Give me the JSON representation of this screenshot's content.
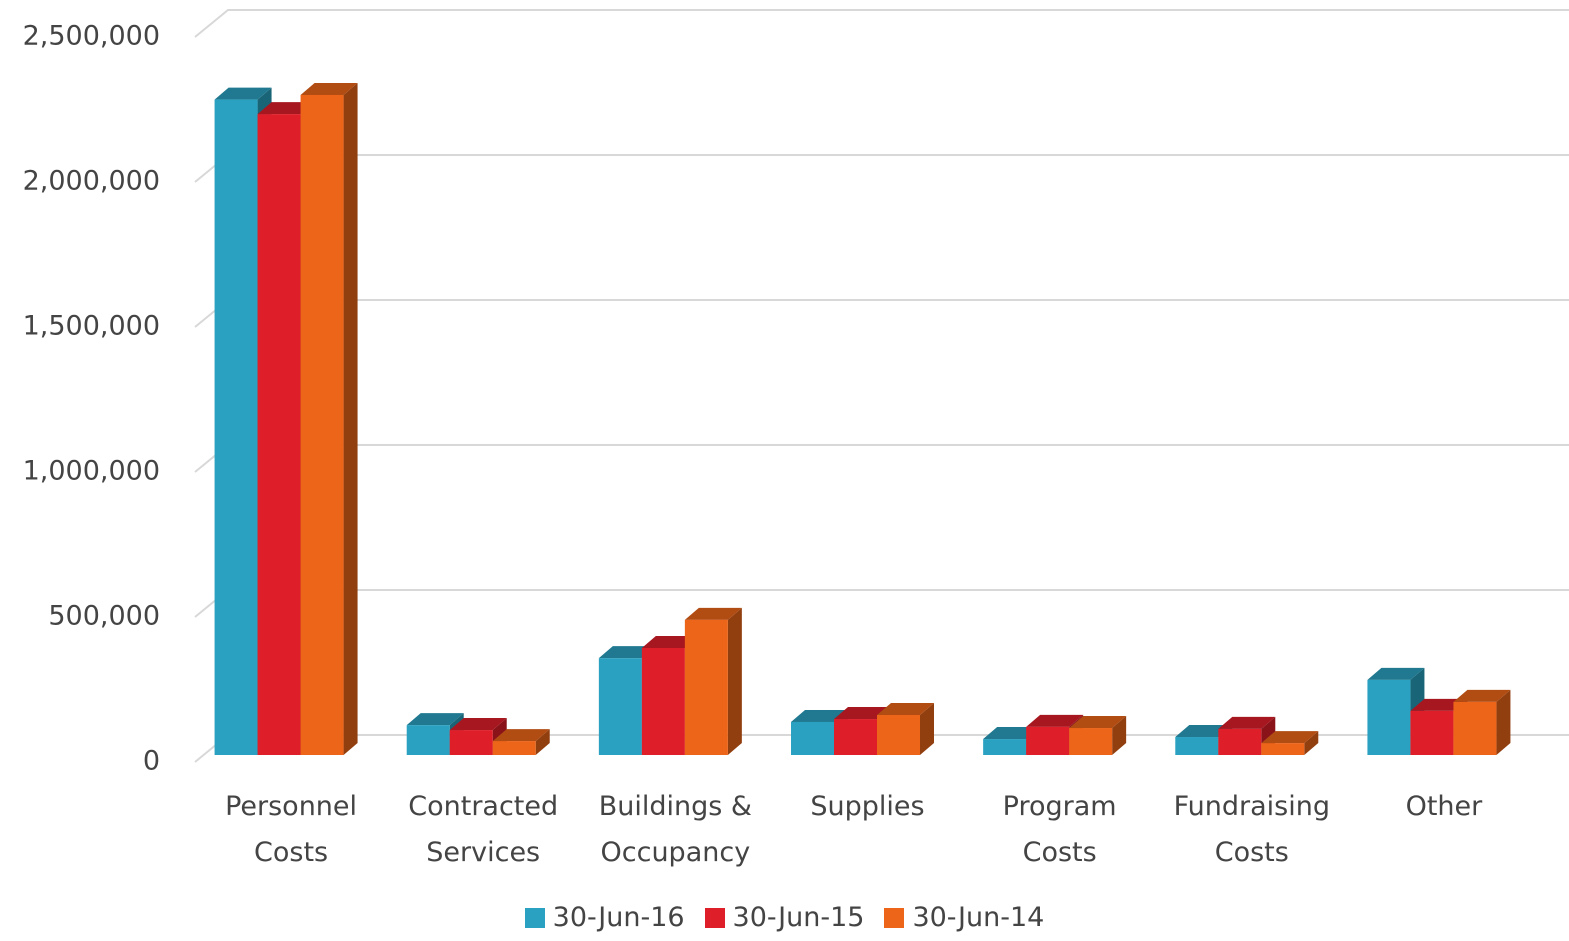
{
  "chart_data": {
    "type": "bar3d",
    "categories": [
      "Personnel Costs",
      "Contracted Services",
      "Buildings & Occupancy",
      "Supplies",
      "Program Costs",
      "Fundraising Costs",
      "Other"
    ],
    "series": [
      {
        "name": "30-Jun-16",
        "color": "#2aa1c0",
        "values": [
          2260000,
          103000,
          334000,
          114000,
          55000,
          62000,
          259000
        ]
      },
      {
        "name": "30-Jun-15",
        "color": "#de1f2a",
        "values": [
          2210000,
          86000,
          369000,
          124000,
          97000,
          90000,
          152000
        ]
      },
      {
        "name": "30-Jun-14",
        "color": "#ec6519",
        "values": [
          2276000,
          48000,
          466000,
          138000,
          93000,
          41000,
          183000
        ]
      }
    ],
    "ylim": [
      0,
      2500000
    ],
    "yticks": [
      0,
      {
        "value": 500000,
        "label": "500,000"
      },
      {
        "value": 1000000,
        "label": "1,000,000"
      },
      {
        "value": 1500000,
        "label": "1,500,000"
      },
      {
        "value": 2000000,
        "label": "2,000,000"
      },
      {
        "value": 2500000,
        "label": "2,500,000"
      }
    ],
    "grid": true,
    "legend": "bottom"
  }
}
